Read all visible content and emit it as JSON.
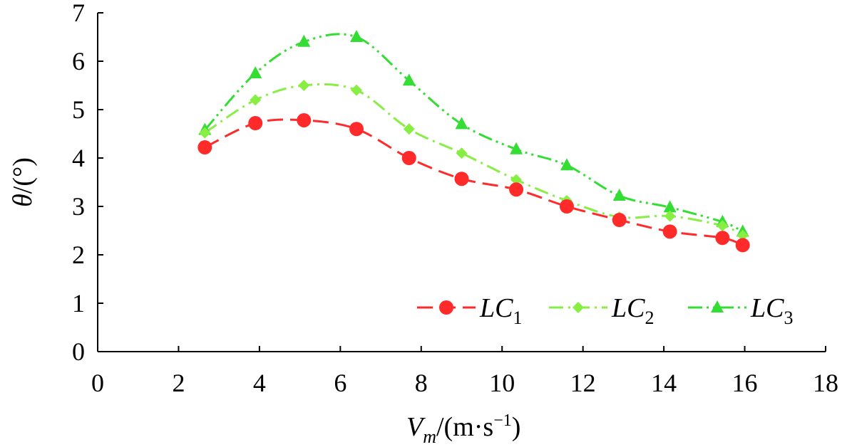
{
  "chart_data": {
    "type": "line",
    "xlabel": {
      "main": "V",
      "sub": "m",
      "unit": "/(m·s",
      "sup": "−1",
      "close": ")"
    },
    "ylabel": {
      "main": "θ",
      "unit": "/(°)"
    },
    "xlim": [
      0,
      18
    ],
    "ylim": [
      0,
      7
    ],
    "xticks": [
      0,
      2,
      4,
      6,
      8,
      10,
      12,
      14,
      16,
      18
    ],
    "yticks": [
      0,
      1,
      2,
      3,
      4,
      5,
      6,
      7
    ],
    "grid": false,
    "legend_position": "bottom-right",
    "series": [
      {
        "name": "LC",
        "subscript": "1",
        "color": "#ff2a2a",
        "marker": "circle",
        "line_style": "dashed",
        "points": [
          [
            2.65,
            4.22
          ],
          [
            3.9,
            4.72
          ],
          [
            5.1,
            4.78
          ],
          [
            6.4,
            4.6
          ],
          [
            7.7,
            4.0
          ],
          [
            9.0,
            3.57
          ],
          [
            10.35,
            3.35
          ],
          [
            11.6,
            3.0
          ],
          [
            12.9,
            2.72
          ],
          [
            14.15,
            2.48
          ],
          [
            15.45,
            2.35
          ],
          [
            15.95,
            2.2
          ]
        ]
      },
      {
        "name": "LC",
        "subscript": "2",
        "color": "#88ee44",
        "marker": "diamond",
        "line_style": "dash-dot",
        "points": [
          [
            2.65,
            4.52
          ],
          [
            3.9,
            5.2
          ],
          [
            5.1,
            5.5
          ],
          [
            6.4,
            5.4
          ],
          [
            7.7,
            4.6
          ],
          [
            9.0,
            4.1
          ],
          [
            10.35,
            3.55
          ],
          [
            11.6,
            3.12
          ],
          [
            12.9,
            2.78
          ],
          [
            14.15,
            2.8
          ],
          [
            15.45,
            2.6
          ],
          [
            15.95,
            2.4
          ]
        ]
      },
      {
        "name": "LC",
        "subscript": "3",
        "color": "#33dd33",
        "marker": "triangle",
        "line_style": "dash-dot-dot",
        "points": [
          [
            2.65,
            4.58
          ],
          [
            3.9,
            5.75
          ],
          [
            5.1,
            6.4
          ],
          [
            6.4,
            6.5
          ],
          [
            7.7,
            5.6
          ],
          [
            9.0,
            4.7
          ],
          [
            10.35,
            4.18
          ],
          [
            11.6,
            3.85
          ],
          [
            12.9,
            3.22
          ],
          [
            14.15,
            2.98
          ],
          [
            15.45,
            2.68
          ],
          [
            15.95,
            2.48
          ]
        ]
      }
    ]
  }
}
